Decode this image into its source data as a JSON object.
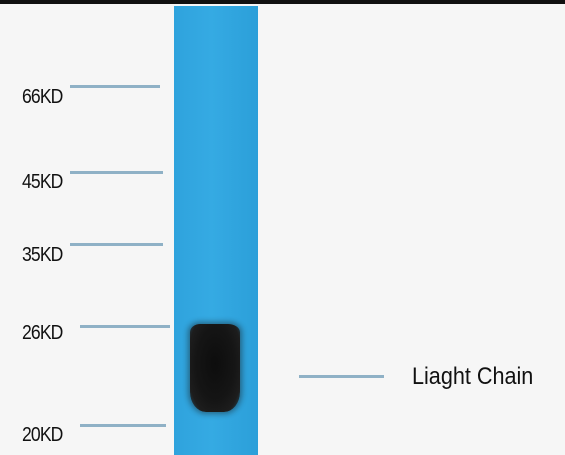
{
  "markers": [
    {
      "label": "66KD"
    },
    {
      "label": "45KD"
    },
    {
      "label": "35KD"
    },
    {
      "label": "26KD"
    },
    {
      "label": "20KD"
    }
  ],
  "annotation": {
    "label": "Liaght Chain"
  },
  "colors": {
    "lane": "#35aae3",
    "band": "#111111",
    "marker_line": "#8fb1c6"
  }
}
